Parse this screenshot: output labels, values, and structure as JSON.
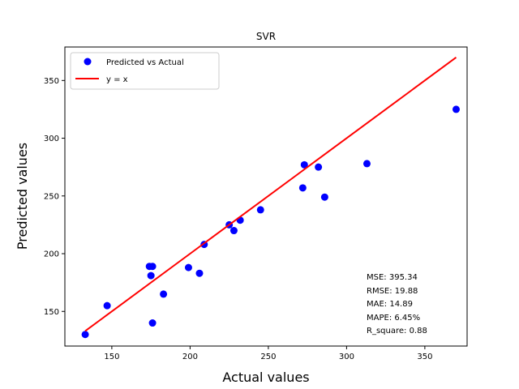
{
  "chart_data": {
    "type": "scatter",
    "title": "SVR",
    "xlabel": "Actual values",
    "ylabel": "Predicted values",
    "xlim": [
      120,
      377
    ],
    "ylim": [
      120,
      379
    ],
    "xticks": [
      150,
      200,
      250,
      300,
      350
    ],
    "yticks": [
      150,
      200,
      250,
      300,
      350
    ],
    "grid": false,
    "legend_position": "top-left",
    "series": [
      {
        "name": "Predicted vs Actual",
        "kind": "scatter",
        "color": "#0000ff",
        "points": [
          {
            "x": 133,
            "y": 130
          },
          {
            "x": 147,
            "y": 155
          },
          {
            "x": 174,
            "y": 189
          },
          {
            "x": 176,
            "y": 189
          },
          {
            "x": 175,
            "y": 181
          },
          {
            "x": 176,
            "y": 140
          },
          {
            "x": 183,
            "y": 165
          },
          {
            "x": 199,
            "y": 188
          },
          {
            "x": 206,
            "y": 183
          },
          {
            "x": 209,
            "y": 208
          },
          {
            "x": 225,
            "y": 225
          },
          {
            "x": 228,
            "y": 220
          },
          {
            "x": 232,
            "y": 229
          },
          {
            "x": 245,
            "y": 238
          },
          {
            "x": 272,
            "y": 257
          },
          {
            "x": 273,
            "y": 277
          },
          {
            "x": 282,
            "y": 275
          },
          {
            "x": 286,
            "y": 249
          },
          {
            "x": 313,
            "y": 278
          },
          {
            "x": 370,
            "y": 325
          }
        ]
      },
      {
        "name": "y = x",
        "kind": "line",
        "color": "#ff0000",
        "points": [
          {
            "x": 133,
            "y": 133
          },
          {
            "x": 370,
            "y": 370
          }
        ]
      }
    ],
    "annotations": [
      "MSE: 395.34",
      "RMSE: 19.88",
      "MAE: 14.89",
      "MAPE: 6.45%",
      "R_square: 0.88"
    ]
  }
}
